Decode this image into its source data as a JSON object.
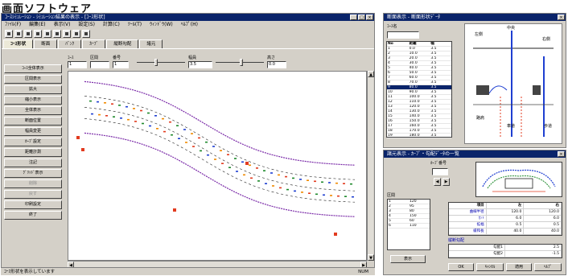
{
  "caption": "画面ソフトウェア",
  "main": {
    "title": "ｺｰｽｼﾐｭﾚｰｼｮﾝ - ｼﾐｭﾚｰｼｮﾝ結果の表示 - [ｺｰｽ形状]",
    "menu": [
      "ﾌｧｲﾙ(F)",
      "編集(E)",
      "表示(V)",
      "設定(S)",
      "計算(C)",
      "ﾂｰﾙ(T)",
      "ｳｨﾝﾄﾞｳ(W)",
      "ﾍﾙﾌﾟ(H)"
    ],
    "tabs": [
      "ｺｰｽ形状",
      "断面",
      "ﾊﾞﾝｸ",
      "ｶｰﾌﾞ",
      "縦断勾配",
      "諸元"
    ],
    "params": {
      "label_a": "ｺｰｽ",
      "value_a": "1",
      "label_b": "区間",
      "value_b": "",
      "label_c": "番号",
      "value_c": "1",
      "label_d": "幅員",
      "value_d": "3.5",
      "label_e": "高さ",
      "value_e": "0.0"
    },
    "sidebar": [
      "ｺｰｽ全体表示",
      "区間表示",
      "拡大",
      "縮小表示",
      "全体表示",
      "断面位置",
      "幅員変更",
      "ｶｰﾌﾞ設定",
      "距離計測",
      "注記",
      "ｸﾞﾘｯﾄﾞ表示",
      "削除",
      "戻す",
      "印刷設定",
      "終了"
    ],
    "sidebar_dim": [
      false,
      false,
      false,
      false,
      false,
      false,
      false,
      false,
      false,
      false,
      false,
      true,
      true,
      false,
      false
    ],
    "status_left": "ｺｰｽ形状を表示しています",
    "status_right": "NUM",
    "plot": {
      "center_color": "#222222",
      "edge_color": "#7a2aa8",
      "marker_colors": [
        "#e23b1f",
        "#1f8a2c",
        "#1f3fd1",
        "#f08a00"
      ]
    }
  },
  "right_top": {
    "title": "断面表示 - 断面形状ﾃﾞｰﾀ",
    "field_label": "ｺｰｽ名",
    "list_header": [
      "No",
      "距離",
      "幅"
    ],
    "list_rows": [
      [
        "1",
        "0.0",
        "3.5"
      ],
      [
        "2",
        "10.0",
        "3.5"
      ],
      [
        "3",
        "20.0",
        "3.5"
      ],
      [
        "4",
        "30.0",
        "3.5"
      ],
      [
        "5",
        "40.0",
        "3.5"
      ],
      [
        "6",
        "50.0",
        "3.5"
      ],
      [
        "7",
        "60.0",
        "3.5"
      ],
      [
        "8",
        "70.0",
        "3.5"
      ],
      [
        "9",
        "80.0",
        "3.5"
      ],
      [
        "10",
        "90.0",
        "3.5"
      ],
      [
        "11",
        "100.0",
        "3.5"
      ],
      [
        "12",
        "110.0",
        "3.5"
      ],
      [
        "13",
        "120.0",
        "3.5"
      ],
      [
        "14",
        "130.0",
        "3.5"
      ],
      [
        "15",
        "140.0",
        "3.5"
      ],
      [
        "16",
        "150.0",
        "3.5"
      ],
      [
        "17",
        "160.0",
        "3.5"
      ],
      [
        "18",
        "170.0",
        "3.5"
      ],
      [
        "19",
        "180.0",
        "3.5"
      ]
    ],
    "selected_row": 8,
    "diagram_labels": [
      "左側",
      "中央",
      "右側",
      "路肩",
      "車道",
      "歩道"
    ]
  },
  "right_bottom": {
    "title": "諸元表示 - ｶｰﾌﾞ・勾配ﾃﾞｰﾀの一覧",
    "label_top": "ｶｰﾌﾞ番号",
    "nav_prev": "◀",
    "nav_next": "▶",
    "field_left": "区間",
    "left_list": [
      "1",
      "2",
      "3",
      "4",
      "5",
      "6"
    ],
    "left_vals": [
      "120",
      "95",
      "80",
      "150",
      "60",
      "110"
    ],
    "grid_headers": [
      "項目",
      "左",
      "右"
    ],
    "grid_rows": [
      [
        "曲線半径",
        "120.0",
        "120.0"
      ],
      [
        "ｶﾝﾄ",
        "6.0",
        "6.0"
      ],
      [
        "拡幅",
        "0.5",
        "0.5"
      ],
      [
        "緩和長",
        "40.0",
        "40.0"
      ]
    ],
    "lower_label": "縦断勾配",
    "lower_rows": [
      [
        "勾配1",
        "2.5"
      ],
      [
        "勾配2",
        "-1.5"
      ]
    ],
    "btn_ok": "OK",
    "btn_cancel": "ｷｬﾝｾﾙ",
    "btn_apply": "適用",
    "btn_help": "ﾍﾙﾌﾟ",
    "btn_left": "表示"
  }
}
